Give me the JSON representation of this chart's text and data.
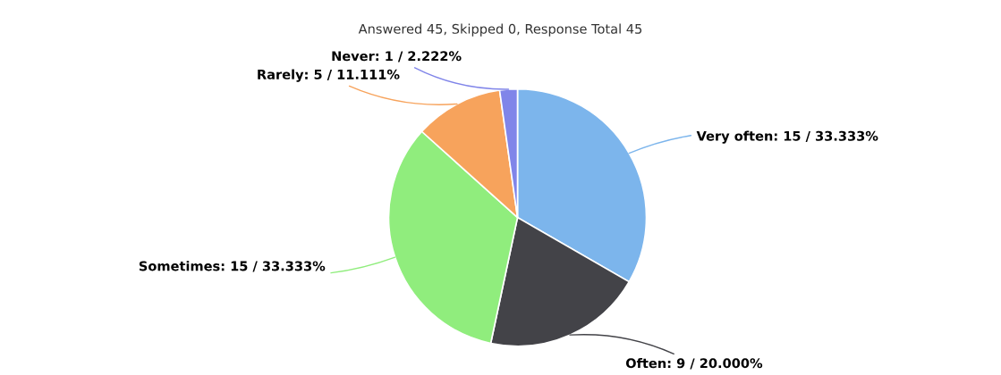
{
  "chart_data": {
    "type": "pie",
    "title": "Answered 45, Skipped 0, Response Total 45",
    "categories": [
      "Very often",
      "Often",
      "Sometimes",
      "Rarely",
      "Never"
    ],
    "values": [
      15,
      9,
      15,
      5,
      1
    ],
    "value_labels": [
      ": 15 / 33.333%",
      ": 9 / 20.000%",
      ": 15 / 33.333%",
      ": 5 / 11.111%",
      ": 1 / 2.222%"
    ],
    "colors": [
      "#7cb5ec",
      "#434348",
      "#90ed7d",
      "#f7a35c",
      "#8085e9"
    ],
    "legend": false
  }
}
